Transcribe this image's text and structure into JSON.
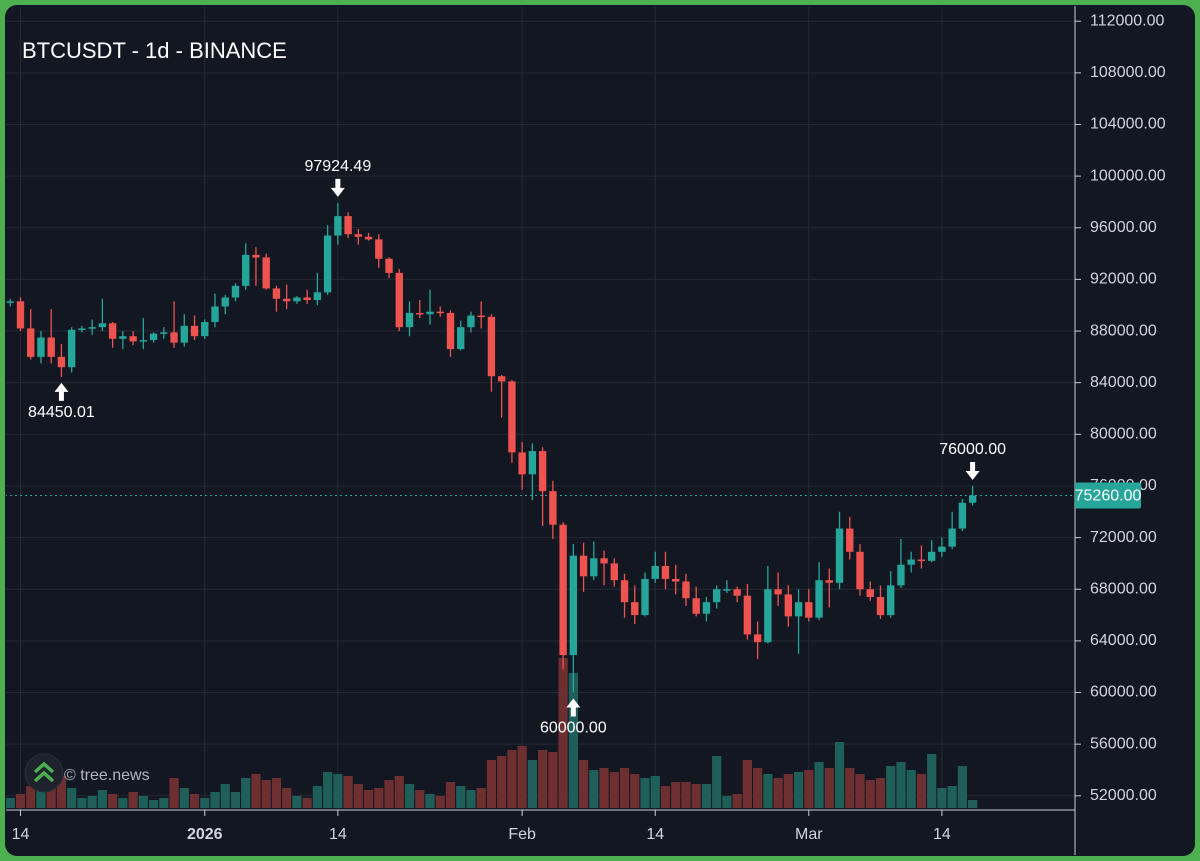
{
  "chart_data": {
    "type": "candlestick",
    "title": "BTCUSDT - 1d - BINANCE",
    "watermark": "© tree.news",
    "up_color": "#26a69a",
    "down_color": "#ef5350",
    "volume_up_color": "#1f5f5a",
    "volume_down_color": "#6e2f31",
    "grid": true,
    "xlim": [
      "2025-12-12",
      "2026-03-27"
    ],
    "ylim": [
      50900,
      113100
    ],
    "yticks": [
      {
        "value": 52000,
        "label": "52000.00"
      },
      {
        "value": 56000,
        "label": "56000.00"
      },
      {
        "value": 60000,
        "label": "60000.00"
      },
      {
        "value": 64000,
        "label": "64000.00"
      },
      {
        "value": 68000,
        "label": "68000.00"
      },
      {
        "value": 72000,
        "label": "72000.00"
      },
      {
        "value": 76000,
        "label": "76000.00"
      },
      {
        "value": 80000,
        "label": "80000.00"
      },
      {
        "value": 84000,
        "label": "84000.00"
      },
      {
        "value": 88000,
        "label": "88000.00"
      },
      {
        "value": 92000,
        "label": "92000.00"
      },
      {
        "value": 96000,
        "label": "96000.00"
      },
      {
        "value": 100000,
        "label": "100000.00"
      },
      {
        "value": 104000,
        "label": "104000.00"
      },
      {
        "value": 108000,
        "label": "108000.00"
      },
      {
        "value": 112000,
        "label": "112000.00"
      }
    ],
    "xticks": [
      {
        "value": "2025-12-14",
        "label": "14"
      },
      {
        "value": "2026-01-01",
        "label": "2026"
      },
      {
        "value": "2026-01-14",
        "label": "14"
      },
      {
        "value": "2026-02-01",
        "label": "Feb"
      },
      {
        "value": "2026-02-14",
        "label": "14"
      },
      {
        "value": "2026-03-01",
        "label": "Mar"
      },
      {
        "value": "2026-03-14",
        "label": "14"
      }
    ],
    "last_price": {
      "value": 75260,
      "label": "75260.00"
    },
    "annotations": [
      {
        "date": "2025-12-18",
        "value": 84450.01,
        "label": "84450.01"
      },
      {
        "date": "2026-01-14",
        "value": 97924.49,
        "label": "97924.49"
      },
      {
        "date": "2026-02-06",
        "value": 60000,
        "label": "60000.00"
      },
      {
        "date": "2026-03-17",
        "value": 76000,
        "label": "76000.00"
      }
    ],
    "dates": [
      "2025-12-13",
      "2025-12-14",
      "2025-12-15",
      "2025-12-16",
      "2025-12-17",
      "2025-12-18",
      "2025-12-19",
      "2025-12-20",
      "2025-12-21",
      "2025-12-22",
      "2025-12-23",
      "2025-12-24",
      "2025-12-25",
      "2025-12-26",
      "2025-12-27",
      "2025-12-28",
      "2025-12-29",
      "2025-12-30",
      "2025-12-31",
      "2026-01-01",
      "2026-01-02",
      "2026-01-03",
      "2026-01-04",
      "2026-01-05",
      "2026-01-06",
      "2026-01-07",
      "2026-01-08",
      "2026-01-09",
      "2026-01-10",
      "2026-01-11",
      "2026-01-12",
      "2026-01-13",
      "2026-01-14",
      "2026-01-15",
      "2026-01-16",
      "2026-01-17",
      "2026-01-18",
      "2026-01-19",
      "2026-01-20",
      "2026-01-21",
      "2026-01-22",
      "2026-01-23",
      "2026-01-24",
      "2026-01-25",
      "2026-01-26",
      "2026-01-27",
      "2026-01-28",
      "2026-01-29",
      "2026-01-30",
      "2026-01-31",
      "2026-02-01",
      "2026-02-02",
      "2026-02-03",
      "2026-02-04",
      "2026-02-05",
      "2026-02-06",
      "2026-02-07",
      "2026-02-08",
      "2026-02-09",
      "2026-02-10",
      "2026-02-11",
      "2026-02-12",
      "2026-02-13",
      "2026-02-14",
      "2026-02-15",
      "2026-02-16",
      "2026-02-17",
      "2026-02-18",
      "2026-02-19",
      "2026-02-20",
      "2026-02-21",
      "2026-02-22",
      "2026-02-23",
      "2026-02-24",
      "2026-02-25",
      "2026-02-26",
      "2026-02-27",
      "2026-02-28",
      "2026-03-01",
      "2026-03-02",
      "2026-03-03",
      "2026-03-04",
      "2026-03-05",
      "2026-03-06",
      "2026-03-07",
      "2026-03-08",
      "2026-03-09",
      "2026-03-10",
      "2026-03-11",
      "2026-03-12",
      "2026-03-13",
      "2026-03-14",
      "2026-03-15",
      "2026-03-16",
      "2026-03-17"
    ],
    "open": [
      90200,
      90300,
      88200,
      86000,
      87500,
      86000,
      85200,
      88100,
      88200,
      88300,
      88600,
      87400,
      87600,
      87200,
      87300,
      87800,
      87900,
      87100,
      88400,
      87600,
      88700,
      89900,
      90600,
      91500,
      93900,
      93700,
      91300,
      90500,
      90300,
      90600,
      90400,
      91000,
      95400,
      96900,
      95500,
      95300,
      95100,
      93600,
      92500,
      88300,
      89400,
      89300,
      89500,
      89400,
      86600,
      88300,
      89200,
      89100,
      84500,
      84100,
      78600,
      76900,
      78700,
      75600,
      73000,
      62900,
      70600,
      69000,
      70400,
      70000,
      68700,
      67000,
      66000,
      68800,
      69800,
      68800,
      68600,
      67300,
      66100,
      67000,
      68000,
      68000,
      67500,
      64500,
      63900,
      68000,
      67600,
      65900,
      67000,
      65800,
      68700,
      68500,
      72700,
      70900,
      68000,
      67400,
      66000,
      68300,
      69900,
      70300,
      70200,
      70900,
      71300,
      72700,
      74700
    ],
    "high": [
      90500,
      90600,
      89700,
      88000,
      89700,
      87000,
      88300,
      88400,
      88900,
      90500,
      88700,
      88000,
      88000,
      89000,
      87900,
      88300,
      90300,
      89300,
      89200,
      88900,
      90900,
      90800,
      91700,
      94800,
      94500,
      94000,
      91500,
      91600,
      90700,
      91200,
      92500,
      96200,
      97924.49,
      97200,
      95900,
      95600,
      95500,
      93700,
      92800,
      90300,
      90400,
      91200,
      89900,
      89600,
      88800,
      89500,
      90300,
      89300,
      84600,
      84200,
      79400,
      79300,
      79000,
      76400,
      73200,
      71500,
      71600,
      71700,
      71000,
      70400,
      69200,
      68300,
      69300,
      70900,
      70900,
      69900,
      69200,
      68200,
      67400,
      68300,
      68700,
      68200,
      68400,
      65500,
      69800,
      69300,
      68300,
      68000,
      68000,
      70100,
      69600,
      74000,
      73600,
      71500,
      68600,
      68300,
      69400,
      71900,
      70900,
      71400,
      71800,
      72000,
      74000,
      75000,
      76000
    ],
    "low": [
      89900,
      88000,
      85800,
      85500,
      85500,
      84450.01,
      84800,
      87900,
      87700,
      88000,
      86700,
      86600,
      86900,
      86600,
      87100,
      87400,
      86700,
      86800,
      87300,
      87400,
      88300,
      89300,
      90300,
      91200,
      91500,
      91200,
      89500,
      89700,
      90100,
      90100,
      90000,
      90800,
      94700,
      95200,
      94700,
      95000,
      92900,
      92100,
      88000,
      87600,
      89000,
      88500,
      89100,
      86000,
      86500,
      87900,
      88200,
      83300,
      81300,
      77800,
      75700,
      74900,
      72900,
      71900,
      61800,
      60000,
      67800,
      68700,
      68300,
      68200,
      65800,
      65300,
      65900,
      68500,
      68000,
      67600,
      66700,
      65900,
      65500,
      66500,
      67700,
      67000,
      64100,
      62600,
      63800,
      66700,
      65100,
      63000,
      65500,
      65600,
      66600,
      68000,
      70300,
      67500,
      67100,
      65700,
      65800,
      68100,
      69300,
      69600,
      70100,
      70500,
      71100,
      72500,
      74500
    ],
    "close": [
      90300,
      88200,
      86000,
      87500,
      86000,
      85200,
      88100,
      88200,
      88300,
      88600,
      87400,
      87600,
      87200,
      87300,
      87800,
      87900,
      87100,
      88400,
      87600,
      88700,
      89900,
      90600,
      91500,
      93900,
      93700,
      91300,
      90500,
      90300,
      90600,
      90400,
      91000,
      95400,
      96900,
      95500,
      95300,
      95100,
      93600,
      92500,
      88300,
      89400,
      89300,
      89500,
      89400,
      86600,
      88300,
      89200,
      89100,
      84500,
      84100,
      78600,
      76900,
      78700,
      75600,
      73000,
      62900,
      70600,
      69000,
      70400,
      70000,
      68700,
      67000,
      66000,
      68800,
      69800,
      68800,
      68600,
      67300,
      66100,
      67000,
      68000,
      68000,
      67500,
      64500,
      63900,
      68000,
      67600,
      65900,
      67000,
      65800,
      68700,
      68500,
      72700,
      70900,
      68000,
      67400,
      66000,
      68300,
      69900,
      70300,
      70200,
      70900,
      71300,
      72700,
      74700,
      75260
    ],
    "volume": [
      10,
      14,
      22,
      28,
      26,
      32,
      20,
      10,
      12,
      18,
      14,
      10,
      16,
      12,
      8,
      10,
      30,
      20,
      14,
      10,
      16,
      24,
      16,
      30,
      34,
      28,
      30,
      20,
      12,
      10,
      22,
      36,
      34,
      32,
      24,
      18,
      20,
      28,
      32,
      24,
      18,
      14,
      12,
      26,
      22,
      18,
      20,
      48,
      52,
      58,
      62,
      48,
      58,
      56,
      150,
      135,
      48,
      38,
      40,
      36,
      40,
      34,
      30,
      32,
      22,
      26,
      26,
      24,
      24,
      52,
      12,
      14,
      48,
      40,
      34,
      30,
      34,
      36,
      38,
      46,
      40,
      66,
      40,
      34,
      28,
      30,
      42,
      46,
      38,
      34,
      54,
      20,
      22,
      42,
      8
    ]
  }
}
